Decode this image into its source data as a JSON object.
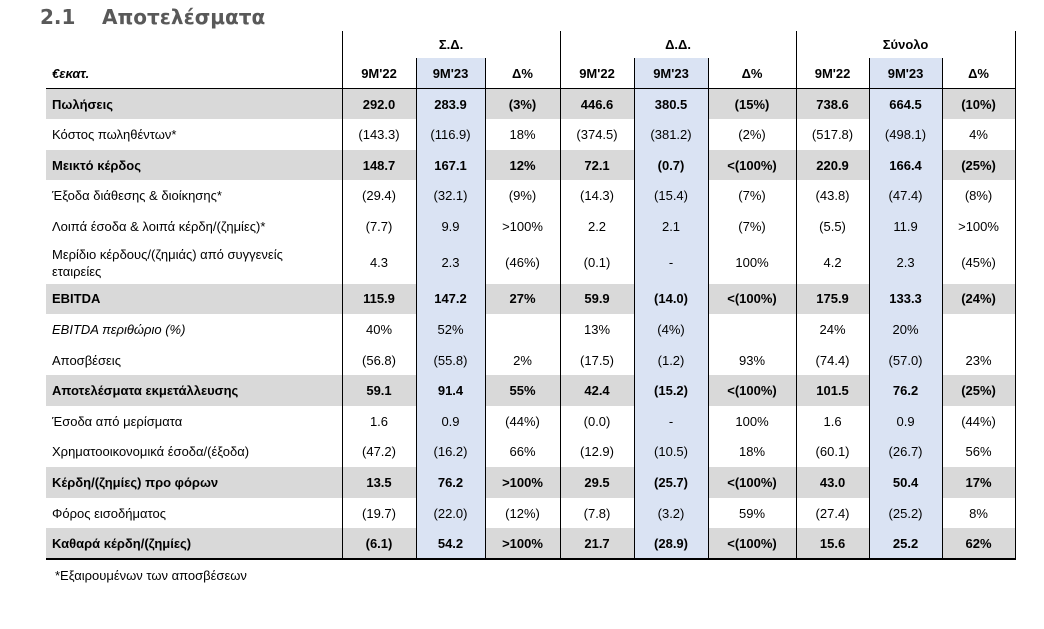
{
  "section": {
    "number": "2.1",
    "title": "Αποτελέσματα"
  },
  "groups": [
    "Σ.Δ.",
    "Δ.Δ.",
    "Σύνολο"
  ],
  "columns": {
    "unit_label": "€εκατ.",
    "periods": [
      "9M'22",
      "9M'23",
      "Δ%"
    ]
  },
  "rows": [
    {
      "label": "Πωλήσεις",
      "style": "bold",
      "values": [
        "292.0",
        "283.9",
        "(3%)",
        "446.6",
        "380.5",
        "(15%)",
        "738.6",
        "664.5",
        "(10%)"
      ]
    },
    {
      "label": "Κόστος πωληθέντων*",
      "style": "normal",
      "values": [
        "(143.3)",
        "(116.9)",
        "18%",
        "(374.5)",
        "(381.2)",
        "(2%)",
        "(517.8)",
        "(498.1)",
        "4%"
      ]
    },
    {
      "label": "Μεικτό κέρδος",
      "style": "bold",
      "values": [
        "148.7",
        "167.1",
        "12%",
        "72.1",
        "(0.7)",
        "<(100%)",
        "220.9",
        "166.4",
        "(25%)"
      ]
    },
    {
      "label": "Έξοδα διάθεσης & διοίκησης*",
      "style": "normal",
      "values": [
        "(29.4)",
        "(32.1)",
        "(9%)",
        "(14.3)",
        "(15.4)",
        "(7%)",
        "(43.8)",
        "(47.4)",
        "(8%)"
      ]
    },
    {
      "label": "Λοιπά έσοδα & λοιπά κέρδη/(ζημίες)*",
      "style": "normal",
      "values": [
        "(7.7)",
        "9.9",
        ">100%",
        "2.2",
        "2.1",
        "(7%)",
        "(5.5)",
        "11.9",
        ">100%"
      ]
    },
    {
      "label": "Μερίδιο κέρδους/(ζημιάς) από συγγενείς εταιρείες",
      "style": "tall",
      "values": [
        "4.3",
        "2.3",
        "(46%)",
        "(0.1)",
        "-",
        "100%",
        "4.2",
        "2.3",
        "(45%)"
      ]
    },
    {
      "label": "EBITDA",
      "style": "bold",
      "values": [
        "115.9",
        "147.2",
        "27%",
        "59.9",
        "(14.0)",
        "<(100%)",
        "175.9",
        "133.3",
        "(24%)"
      ]
    },
    {
      "label": "EBITDA περιθώριο (%)",
      "style": "italic",
      "values": [
        "40%",
        "52%",
        "",
        "13%",
        "(4%)",
        "",
        "24%",
        "20%",
        ""
      ]
    },
    {
      "label": "Αποσβέσεις",
      "style": "normal",
      "values": [
        "(56.8)",
        "(55.8)",
        "2%",
        "(17.5)",
        "(1.2)",
        "93%",
        "(74.4)",
        "(57.0)",
        "23%"
      ]
    },
    {
      "label": "Αποτελέσματα εκμετάλλευσης",
      "style": "bold",
      "values": [
        "59.1",
        "91.4",
        "55%",
        "42.4",
        "(15.2)",
        "<(100%)",
        "101.5",
        "76.2",
        "(25%)"
      ]
    },
    {
      "label": "Έσοδα από μερίσματα",
      "style": "normal",
      "values": [
        "1.6",
        "0.9",
        "(44%)",
        "(0.0)",
        "-",
        "100%",
        "1.6",
        "0.9",
        "(44%)"
      ]
    },
    {
      "label": "Χρηματοοικονομικά έσοδα/(έξοδα)",
      "style": "normal",
      "values": [
        "(47.2)",
        "(16.2)",
        "66%",
        "(12.9)",
        "(10.5)",
        "18%",
        "(60.1)",
        "(26.7)",
        "56%"
      ]
    },
    {
      "label": "Κέρδη/(ζημίες) προ φόρων",
      "style": "bold",
      "values": [
        "13.5",
        "76.2",
        ">100%",
        "29.5",
        "(25.7)",
        "<(100%)",
        "43.0",
        "50.4",
        "17%"
      ]
    },
    {
      "label": "Φόρος εισοδήματος",
      "style": "normal",
      "values": [
        "(19.7)",
        "(22.0)",
        "(12%)",
        "(7.8)",
        "(3.2)",
        "59%",
        "(27.4)",
        "(25.2)",
        "8%"
      ]
    },
    {
      "label": "Καθαρά κέρδη/(ζημίες)",
      "style": "bold",
      "values": [
        "(6.1)",
        "54.2",
        ">100%",
        "21.7",
        "(28.9)",
        "<(100%)",
        "15.6",
        "25.2",
        "62%"
      ]
    }
  ],
  "footnote": "*Εξαιρουμένων των αποσβέσεων"
}
